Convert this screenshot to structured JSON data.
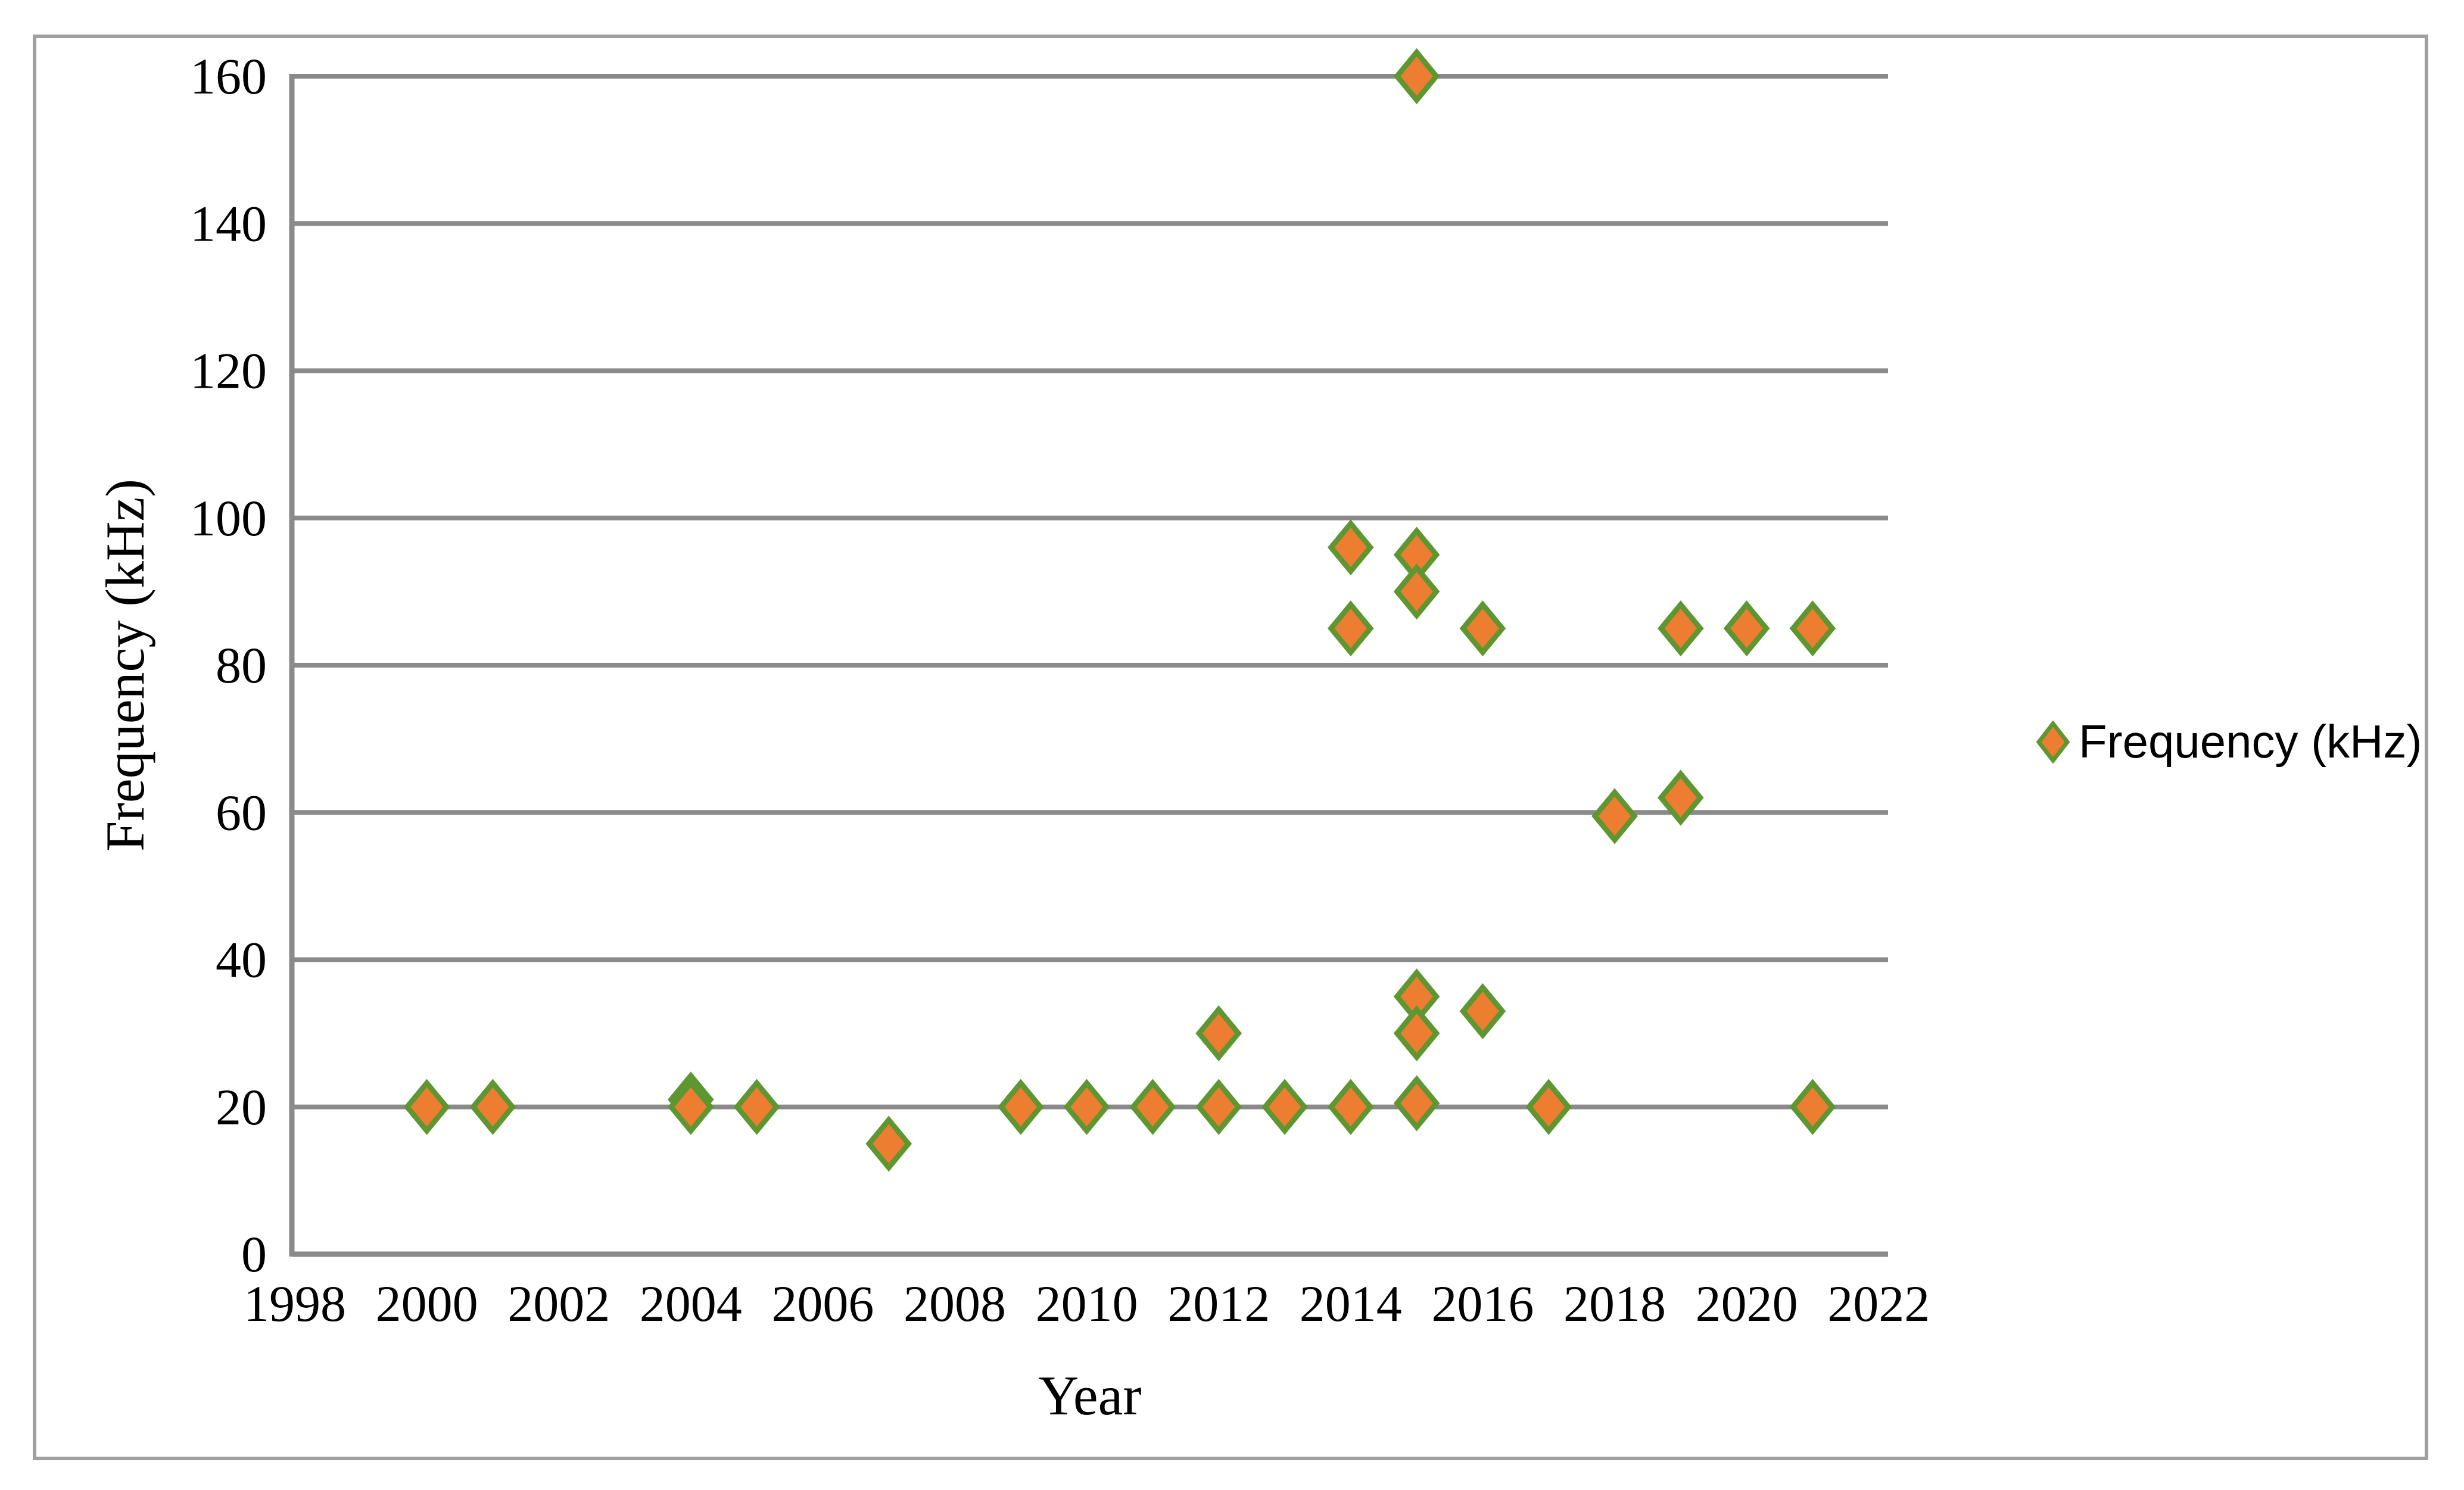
{
  "figure": {
    "background_color": "#FFFFFF",
    "frame_color": "#A0A0A0"
  },
  "chart_data": {
    "type": "scatter",
    "title": "",
    "xlabel": "Year",
    "ylabel": "Frequency (kHz)",
    "xlim": [
      1998,
      2022
    ],
    "ylim": [
      0,
      160
    ],
    "x_ticks": [
      1998,
      2000,
      2002,
      2004,
      2006,
      2008,
      2010,
      2012,
      2014,
      2016,
      2018,
      2020,
      2022
    ],
    "y_ticks": [
      0,
      20,
      40,
      60,
      80,
      100,
      120,
      140,
      160
    ],
    "grid": "horizontal-only",
    "legend": {
      "label": "Frequency (kHz)",
      "position": "right"
    },
    "series": [
      {
        "name": "Frequency (kHz)",
        "marker": "diamond",
        "marker_fill": "#ED7D31",
        "marker_stroke": "#5E9732",
        "points": [
          [
            2000,
            20
          ],
          [
            2001,
            20
          ],
          [
            2004,
            21
          ],
          [
            2004,
            20
          ],
          [
            2005,
            20
          ],
          [
            2007,
            15
          ],
          [
            2009,
            20
          ],
          [
            2010,
            20
          ],
          [
            2011,
            20
          ],
          [
            2012,
            30
          ],
          [
            2012,
            20
          ],
          [
            2013,
            20
          ],
          [
            2014,
            96
          ],
          [
            2014,
            85
          ],
          [
            2014,
            20
          ],
          [
            2015,
            160
          ],
          [
            2015,
            95
          ],
          [
            2015,
            90
          ],
          [
            2015,
            35
          ],
          [
            2015,
            30
          ],
          [
            2015,
            20.5
          ],
          [
            2016,
            85
          ],
          [
            2016,
            33
          ],
          [
            2017,
            20
          ],
          [
            2018,
            59.5
          ],
          [
            2019,
            85
          ],
          [
            2019,
            62
          ],
          [
            2020,
            85
          ],
          [
            2021,
            85
          ],
          [
            2021,
            20
          ]
        ]
      }
    ],
    "colors": {
      "gridline": "#8A8A8A",
      "axis_line": "#8A8A8A",
      "tick_label": "#000000",
      "marker_fill": "#ED7D31",
      "marker_stroke": "#5E9732"
    }
  }
}
